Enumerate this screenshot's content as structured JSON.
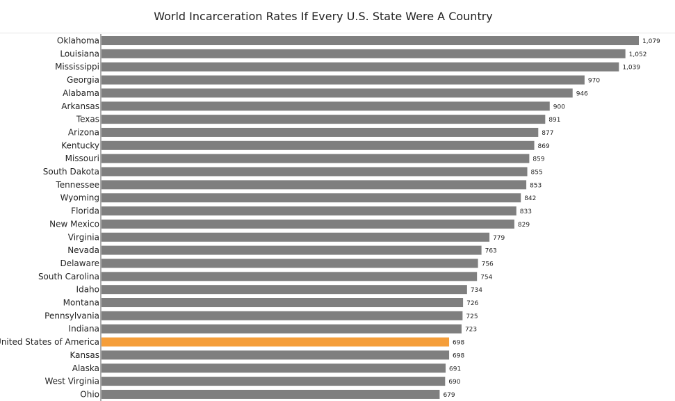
{
  "chart_data": {
    "type": "bar",
    "orientation": "horizontal",
    "title": "World Incarceration Rates If Every U.S. State Were A Country",
    "categories": [
      "Oklahoma",
      "Louisiana",
      "Mississippi",
      "Georgia",
      "Alabama",
      "Arkansas",
      "Texas",
      "Arizona",
      "Kentucky",
      "Missouri",
      "South Dakota",
      "Tennessee",
      "Wyoming",
      "Florida",
      "New Mexico",
      "Virginia",
      "Nevada",
      "Delaware",
      "South Carolina",
      "Idaho",
      "Montana",
      "Pennsylvania",
      "Indiana",
      "United States of America",
      "Kansas",
      "Alaska",
      "West Virginia",
      "Ohio"
    ],
    "values": [
      1079,
      1052,
      1039,
      970,
      946,
      900,
      891,
      877,
      869,
      859,
      855,
      853,
      842,
      833,
      829,
      779,
      763,
      756,
      754,
      734,
      726,
      725,
      723,
      698,
      698,
      691,
      690,
      679
    ],
    "value_labels": [
      "1,079",
      "1,052",
      "1,039",
      "970",
      "946",
      "900",
      "891",
      "877",
      "869",
      "859",
      "855",
      "853",
      "842",
      "833",
      "829",
      "779",
      "763",
      "756",
      "754",
      "734",
      "726",
      "725",
      "723",
      "698",
      "698",
      "691",
      "690",
      "679"
    ],
    "highlight_category": "United States of America",
    "colors": {
      "bar": "#7f7f7f",
      "highlight": "#f59e3a",
      "axis": "#555555"
    },
    "xlim": [
      0,
      1079
    ],
    "grid": false,
    "legend": "none",
    "xlabel": "",
    "ylabel": ""
  }
}
